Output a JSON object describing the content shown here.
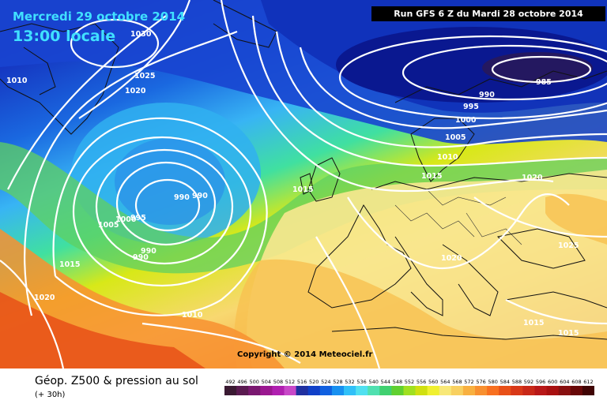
{
  "header": {
    "date": "Mercredi 29 octobre 2014",
    "time": "13:00 locale",
    "run": "Run GFS 6 Z du Mardi 28 octobre 2014"
  },
  "copyright": "Copyright © 2014 Meteociel.fr",
  "footer": {
    "title": "Géop. Z500 & pression au sol",
    "subtitle": "(+ 30h)"
  },
  "scale": {
    "values": [
      "492",
      "496",
      "500",
      "504",
      "508",
      "512",
      "516",
      "520",
      "524",
      "528",
      "532",
      "536",
      "540",
      "544",
      "548",
      "552",
      "556",
      "560",
      "564",
      "568",
      "572",
      "576",
      "580",
      "584",
      "588",
      "592",
      "596",
      "600",
      "604",
      "608",
      "612"
    ],
    "colors": [
      "#3a1a32",
      "#5a1a50",
      "#7a1870",
      "#9a1890",
      "#b020b0",
      "#c848c8",
      "#2030a0",
      "#1040c8",
      "#1060e0",
      "#1890f0",
      "#30c0f8",
      "#50e0f0",
      "#50e0b0",
      "#40d070",
      "#60d030",
      "#a0e020",
      "#d0e010",
      "#f0f030",
      "#f8e878",
      "#f8d060",
      "#f8b040",
      "#f89030",
      "#f87020",
      "#e85018",
      "#d83818",
      "#c82818",
      "#b81818",
      "#a81010",
      "#881010",
      "#680808",
      "#400404"
    ]
  },
  "isobar_labels": [
    "1030",
    "1025",
    "1020",
    "1010",
    "990",
    "990",
    "1000",
    "995",
    "1005",
    "990",
    "990",
    "1015",
    "1020",
    "985",
    "990",
    "995",
    "1000",
    "1005",
    "1010",
    "1015",
    "1015",
    "1020",
    "1020",
    "1025",
    "1010",
    "1015",
    "1015"
  ],
  "colors": {
    "background_ocean": "#1a30c0",
    "contours": "#ffffff"
  }
}
